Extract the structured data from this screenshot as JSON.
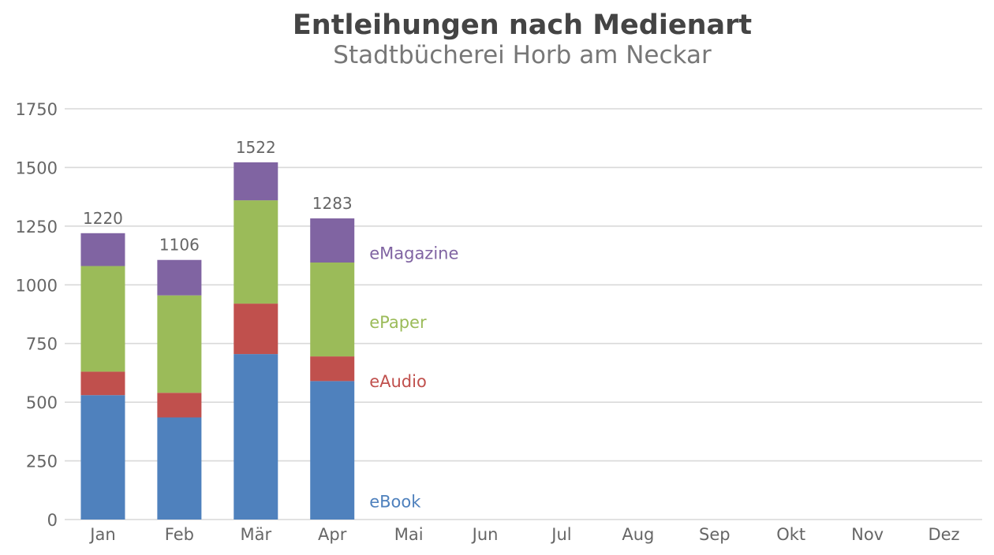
{
  "chart_data": {
    "type": "bar",
    "stacked": true,
    "title": "Entleihungen nach Medienart",
    "subtitle": "Stadtbücherei Horb am Neckar",
    "xlabel": "",
    "ylabel": "",
    "categories": [
      "Jan",
      "Feb",
      "Mär",
      "Apr",
      "Mai",
      "Jun",
      "Jul",
      "Aug",
      "Sep",
      "Okt",
      "Nov",
      "Dez"
    ],
    "ylim": [
      0,
      1750
    ],
    "yticks": [
      0,
      250,
      500,
      750,
      1000,
      1250,
      1500,
      1750
    ],
    "grid": true,
    "legend": "inline labels right of last bar",
    "series": [
      {
        "name": "eBook",
        "color": "#4f81bd",
        "values": [
          530,
          435,
          705,
          590,
          null,
          null,
          null,
          null,
          null,
          null,
          null,
          null
        ]
      },
      {
        "name": "eAudio",
        "color": "#c0504d",
        "values": [
          100,
          105,
          215,
          105,
          null,
          null,
          null,
          null,
          null,
          null,
          null,
          null
        ]
      },
      {
        "name": "ePaper",
        "color": "#9bbb59",
        "values": [
          450,
          415,
          440,
          400,
          null,
          null,
          null,
          null,
          null,
          null,
          null,
          null
        ]
      },
      {
        "name": "eMagazine",
        "color": "#8064a2",
        "values": [
          140,
          151,
          162,
          188,
          null,
          null,
          null,
          null,
          null,
          null,
          null,
          null
        ]
      }
    ],
    "totals": [
      "1220",
      "1106",
      "1522",
      "1283",
      null,
      null,
      null,
      null,
      null,
      null,
      null,
      null
    ]
  }
}
